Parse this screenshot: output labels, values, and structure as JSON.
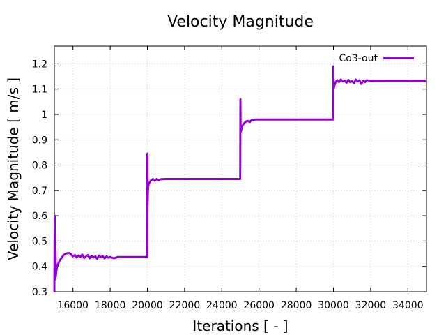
{
  "chart_data": {
    "type": "line",
    "title": "Velocity Magnitude",
    "xlabel": "Iterations [ - ]",
    "ylabel": "Velocity Magnitude [ m/s ]",
    "xlim": [
      15000,
      35000
    ],
    "ylim": [
      0.3,
      1.27
    ],
    "xticks": [
      16000,
      18000,
      20000,
      22000,
      24000,
      26000,
      28000,
      30000,
      32000,
      34000
    ],
    "xtick_labels": [
      "16000",
      "18000",
      "20000",
      "22000",
      "24000",
      "26000",
      "28000",
      "30000",
      "32000",
      "34000"
    ],
    "yticks": [
      0.3,
      0.4,
      0.5,
      0.6,
      0.7,
      0.8,
      0.9,
      1.0,
      1.1,
      1.2
    ],
    "ytick_labels": [
      "0.3",
      "0.4",
      "0.5",
      "0.6",
      "0.7",
      "0.8",
      "0.9",
      "1",
      "1.1",
      "1.2"
    ],
    "grid": true,
    "legend_position": "top-right",
    "series": [
      {
        "name": "Co3-out",
        "color": "#9400d3",
        "x": [
          15000,
          15020,
          15040,
          15060,
          15080,
          15100,
          15150,
          15200,
          15300,
          15400,
          15500,
          15600,
          15700,
          15800,
          15900,
          16000,
          16100,
          16200,
          16300,
          16400,
          16500,
          16600,
          16700,
          16800,
          16900,
          17000,
          17100,
          17200,
          17300,
          17400,
          17500,
          17600,
          17700,
          17800,
          17900,
          18000,
          18200,
          18400,
          19000,
          19990,
          20000,
          20010,
          20030,
          20050,
          20100,
          20200,
          20300,
          20400,
          20500,
          20600,
          20700,
          21000,
          22000,
          24000,
          24990,
          25000,
          25010,
          25050,
          25100,
          25200,
          25300,
          25400,
          25500,
          25600,
          25700,
          25800,
          26000,
          27000,
          29000,
          29990,
          30000,
          30010,
          30050,
          30100,
          30200,
          30300,
          30400,
          30500,
          30600,
          30700,
          30800,
          30900,
          31000,
          31100,
          31200,
          31300,
          31400,
          31500,
          31600,
          31700,
          31800,
          32000,
          33000,
          34000,
          35000
        ],
        "y": [
          0.3,
          0.6,
          0.35,
          0.46,
          0.36,
          0.38,
          0.4,
          0.41,
          0.425,
          0.435,
          0.445,
          0.45,
          0.452,
          0.453,
          0.448,
          0.44,
          0.445,
          0.435,
          0.443,
          0.438,
          0.447,
          0.433,
          0.44,
          0.445,
          0.432,
          0.442,
          0.435,
          0.44,
          0.43,
          0.443,
          0.436,
          0.441,
          0.432,
          0.44,
          0.434,
          0.437,
          0.432,
          0.437,
          0.437,
          0.437,
          0.845,
          0.64,
          0.7,
          0.72,
          0.73,
          0.74,
          0.745,
          0.738,
          0.745,
          0.74,
          0.744,
          0.745,
          0.745,
          0.745,
          0.745,
          1.06,
          0.93,
          0.94,
          0.955,
          0.965,
          0.972,
          0.975,
          0.97,
          0.978,
          0.976,
          0.98,
          0.98,
          0.98,
          0.98,
          0.98,
          1.19,
          1.1,
          1.115,
          1.125,
          1.135,
          1.128,
          1.138,
          1.13,
          1.134,
          1.125,
          1.136,
          1.128,
          1.132,
          1.124,
          1.138,
          1.13,
          1.135,
          1.12,
          1.134,
          1.128,
          1.135,
          1.133,
          1.133,
          1.133,
          1.133
        ]
      }
    ]
  }
}
